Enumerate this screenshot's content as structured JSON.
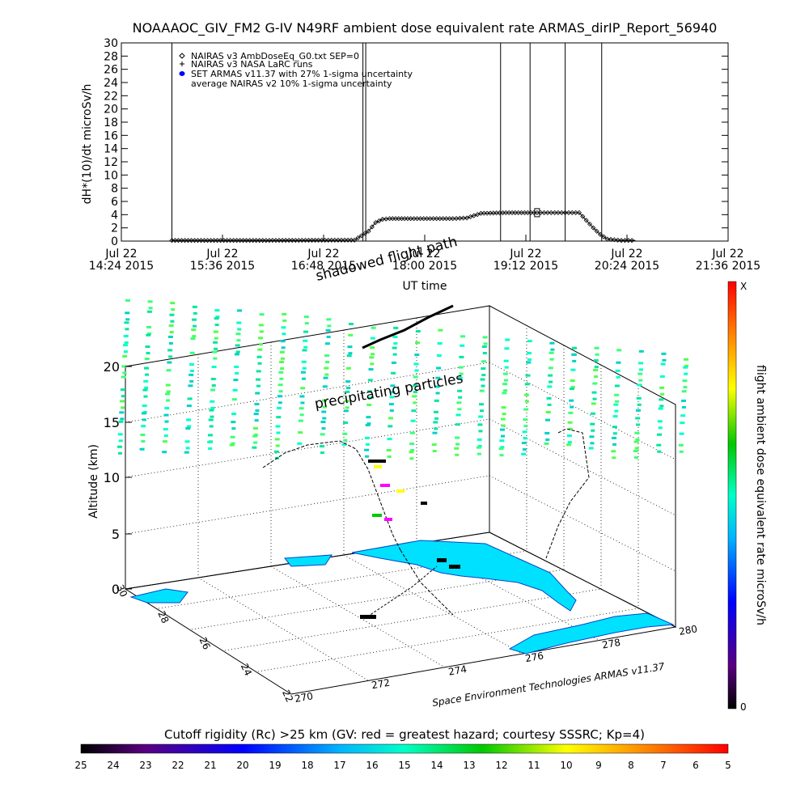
{
  "header": {
    "title": "NOAAAOC_GIV_FM2 G-IV   N49RF  ambient dose equivalent rate ARMAS_dirIP_Report_56940"
  },
  "chart_data": [
    {
      "type": "line",
      "ylabel": "dH*(10)/dt microSv/h",
      "xlabel": "UT time",
      "ylim": [
        0,
        30
      ],
      "yticks": [
        0,
        2,
        4,
        6,
        8,
        10,
        12,
        14,
        16,
        18,
        20,
        22,
        24,
        26,
        28,
        30
      ],
      "xticks": [
        {
          "l1": "Jul 22",
          "l2": "14:24 2015",
          "t": 864
        },
        {
          "l1": "Jul 22",
          "l2": "15:36 2015",
          "t": 936
        },
        {
          "l1": "Jul 22",
          "l2": "16:48 2015",
          "t": 1008
        },
        {
          "l1": "Jul 22",
          "l2": "18:00 2015",
          "t": 1080
        },
        {
          "l1": "Jul 22",
          "l2": "19:12 2015",
          "t": 1152
        },
        {
          "l1": "Jul 22",
          "l2": "20:24 2015",
          "t": 1224
        },
        {
          "l1": "Jul 22",
          "l2": "21:36 2015",
          "t": 1296
        }
      ],
      "xlim_minutes": [
        864,
        1296
      ],
      "legend": [
        "NAIRAS v3 AmbDoseEq_G0.txt SEP=0",
        "NAIRAS v3 NASA LaRC runs",
        "SET ARMAS v11.37 with 27% 1-sigma uncertainty",
        "average NAIRAS v2 10% 1-sigma uncertainty"
      ],
      "legend_position": "top-left",
      "vertical_lines_minutes": [
        900,
        1036,
        1038,
        1134,
        1155,
        1180,
        1206
      ],
      "series": [
        {
          "marker": "diamond",
          "x": [
            900,
            960,
            1030,
            1040,
            1045,
            1050,
            1055,
            1070,
            1100,
            1110,
            1120,
            1140,
            1160,
            1170,
            1180,
            1190,
            1200,
            1205,
            1210,
            1220,
            1230
          ],
          "y": [
            0.1,
            0.1,
            0.15,
            1.5,
            2.8,
            3.3,
            3.4,
            3.4,
            3.4,
            3.5,
            4.2,
            4.3,
            4.3,
            4.3,
            4.3,
            4.3,
            2.0,
            1.0,
            0.3,
            0.1,
            0.1
          ]
        }
      ]
    },
    {
      "type": "scatter",
      "title": "shadowed flight path",
      "annotation": "precipitating particles",
      "zlabel": "Altitude (km)",
      "zticks": [
        "0",
        "5",
        "10",
        "15",
        "20"
      ],
      "x_ticks": [
        "270",
        "272",
        "274",
        "276",
        "278",
        "280"
      ],
      "y_ticks": [
        "22",
        "24",
        "26",
        "28",
        "30"
      ],
      "credit": "Space Environment Technologies ARMAS v11.37",
      "colorbar_right": {
        "label": "flight ambient dose equivalent rate microSv/h",
        "top": "X",
        "bottom": "0"
      },
      "colorbar_bottom": {
        "label": "Cutoff rigidity (Rc) >25 km (GV: red = greatest hazard; courtesy SSSRC; Kp=4)",
        "ticks": [
          "25",
          "24",
          "23",
          "22",
          "21",
          "20",
          "19",
          "18",
          "17",
          "16",
          "15",
          "14",
          "13",
          "12",
          "11",
          "10",
          "9",
          "8",
          "7",
          "6",
          "5"
        ]
      }
    }
  ]
}
